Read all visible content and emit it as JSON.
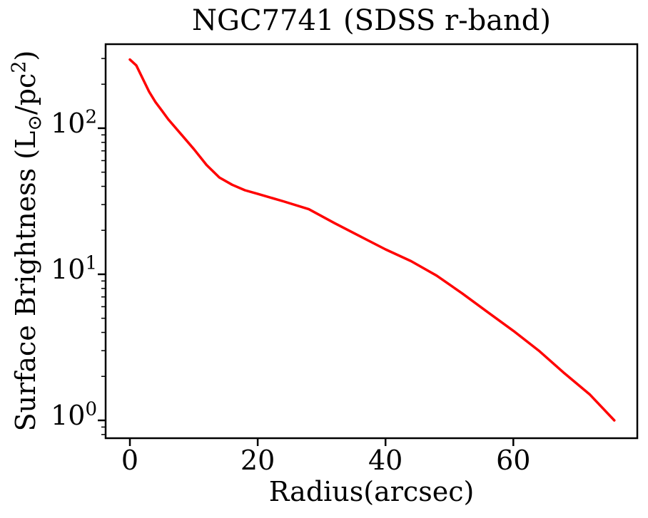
{
  "colors": {
    "line": "#ff0000",
    "axes": "#000000",
    "background": "#ffffff",
    "text": "#000000"
  },
  "chart_data": {
    "type": "line",
    "title": "NGC7741 (SDSS r-band)",
    "xlabel": "Radius(arcsec)",
    "ylabel": "Surface Brightness (L⊙/pc²)",
    "ylabel_parts": {
      "prefix": "Surface Brightness (L",
      "subscript": "⊙",
      "middle": "/pc",
      "superscript": "2",
      "suffix": ")"
    },
    "grid": false,
    "legend": null,
    "x_axis": {
      "scale": "linear",
      "lim": [
        -3.8,
        79.4
      ],
      "ticks": [
        0,
        20,
        40,
        60
      ],
      "tick_labels": [
        "0",
        "20",
        "40",
        "60"
      ]
    },
    "y_axis": {
      "scale": "log",
      "lim": [
        0.755,
        376
      ],
      "ticks": [
        1,
        10,
        100
      ],
      "tick_labels": [
        {
          "base": "10",
          "exp": "0"
        },
        {
          "base": "10",
          "exp": "1"
        },
        {
          "base": "10",
          "exp": "2"
        }
      ],
      "minor_ticks": [
        0.8,
        0.9,
        2,
        3,
        4,
        5,
        6,
        7,
        8,
        9,
        20,
        30,
        40,
        50,
        60,
        70,
        80,
        90,
        200,
        300
      ]
    },
    "series": [
      {
        "name": "surface-brightness-profile",
        "color": "#ff0000",
        "x": [
          0,
          1,
          2,
          3,
          4,
          5,
          6,
          8,
          10,
          12,
          14,
          16,
          18,
          20,
          24,
          28,
          32,
          36,
          40,
          44,
          48,
          52,
          56,
          60,
          64,
          68,
          72,
          75.8
        ],
        "y": [
          295,
          269,
          219,
          178,
          151,
          132,
          115,
          91,
          72,
          56,
          46,
          41,
          37.6,
          35.5,
          31.6,
          27.9,
          22.4,
          18.2,
          14.8,
          12.3,
          9.8,
          7.4,
          5.5,
          4.1,
          3.0,
          2.1,
          1.5,
          1.0
        ]
      }
    ]
  }
}
